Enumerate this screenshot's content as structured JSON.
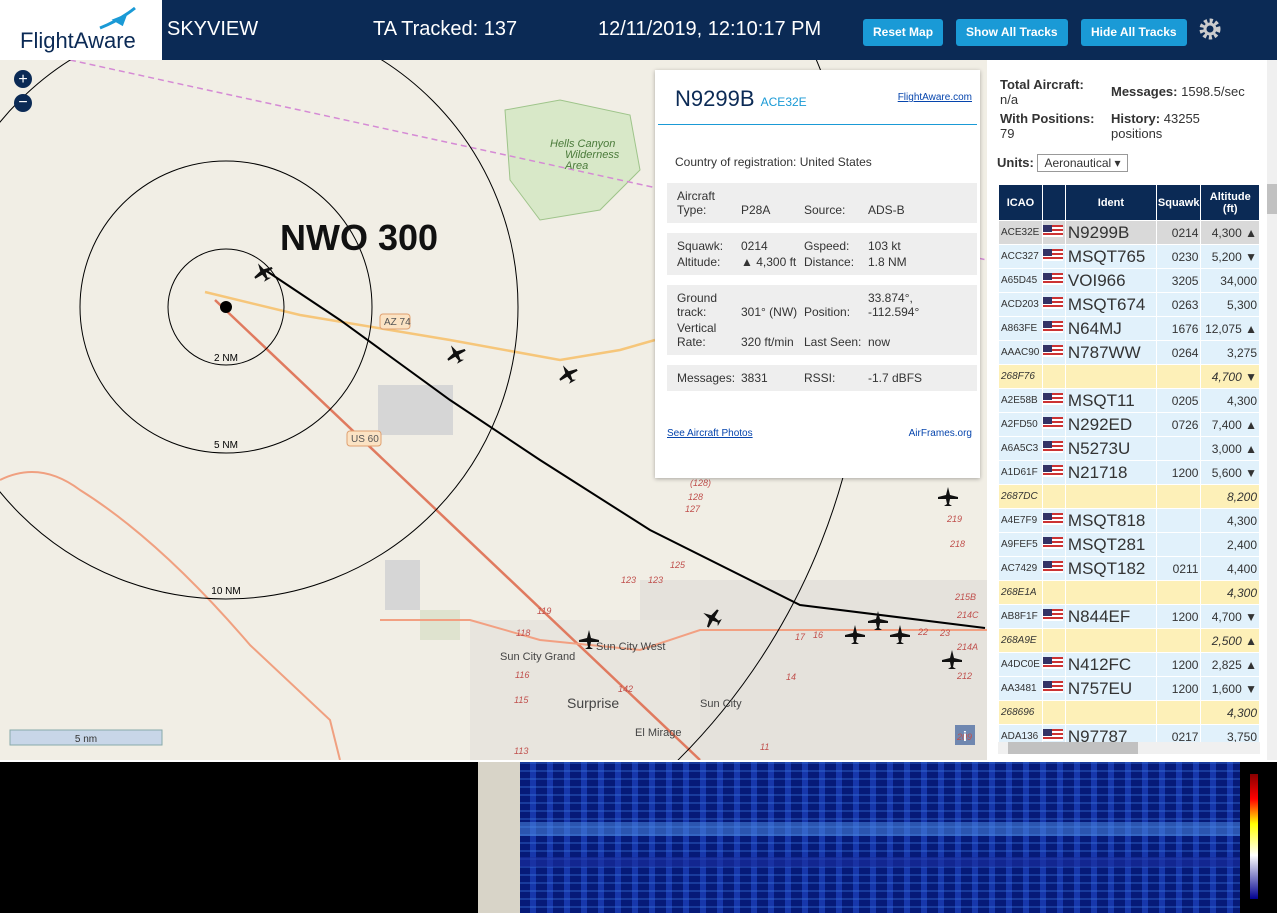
{
  "header": {
    "logo": "FlightAware",
    "title": "SKYVIEW",
    "tracked": "TA Tracked: 137",
    "datetime": "12/11/2019, 12:10:17 PM",
    "buttons": [
      "Reset Map",
      "Show All Tracks",
      "Hide All Tracks"
    ]
  },
  "map": {
    "annotation": "NWO 300",
    "range_labels": [
      "2 NM",
      "5 NM",
      "10 NM"
    ],
    "roads": [
      "AZ 74",
      "US 60"
    ],
    "places": [
      "Hells Canyon Wilderness Area",
      "Sun City Grand",
      "Sun City West",
      "Surprise",
      "Sun City",
      "El Mirage"
    ],
    "route_numbers": [
      "(128)",
      "128",
      "127",
      "125",
      "123",
      "123",
      "119",
      "118",
      "116",
      "115",
      "113",
      "142",
      "17",
      "16",
      "14",
      "11",
      "219",
      "218",
      "215B",
      "214C",
      "214A",
      "212",
      "209",
      "23",
      "22"
    ],
    "scale": "5 nm",
    "info": "i"
  },
  "popup": {
    "registration": "N9299B",
    "icao": "ACE32E",
    "link": "FlightAware.com",
    "country_label": "Country of registration:",
    "country": "United States",
    "groups": [
      [
        [
          "Aircraft Type:",
          "P28A"
        ],
        [
          "Source:",
          "ADS-B"
        ]
      ],
      [
        [
          "Squawk:",
          "0214"
        ],
        [
          "Gspeed:",
          "103 kt"
        ],
        [
          "Altitude:",
          "▲ 4,300 ft"
        ],
        [
          "Distance:",
          "1.8 NM"
        ]
      ],
      [
        [
          "Ground track:",
          "301° (NW)"
        ],
        [
          "Position:",
          "33.874°, -112.594°"
        ],
        [
          "Vertical Rate:",
          "320 ft/min"
        ],
        [
          "Last Seen:",
          "now"
        ]
      ],
      [
        [
          "Messages:",
          "3831"
        ],
        [
          "RSSI:",
          "-1.7 dBFS"
        ]
      ]
    ],
    "photos_link": "See Aircraft Photos",
    "airframes_link": "AirFrames.org"
  },
  "stats": {
    "total_label": "Total Aircraft:",
    "total": "n/a",
    "messages_label": "Messages:",
    "messages": "1598.5/sec",
    "positions_label": "With Positions:",
    "positions": "79",
    "history_label": "History:",
    "history": "43255 positions",
    "units_label": "Units:",
    "units": "Aeronautical"
  },
  "table": {
    "headers": [
      "ICAO",
      "Ident",
      "Squawk",
      "Altitude (ft)"
    ],
    "rows": [
      [
        "ACE32E",
        "N9299B",
        "0214",
        "4,300 ▲"
      ],
      [
        "ACC327",
        "MSQT765",
        "0230",
        "5,200 ▼"
      ],
      [
        "A65D45",
        "VOI966",
        "3205",
        "34,000"
      ],
      [
        "ACD203",
        "MSQT674",
        "0263",
        "5,300"
      ],
      [
        "A863FE",
        "N64MJ",
        "1676",
        "12,075 ▲"
      ],
      [
        "AAAC90",
        "N787WW",
        "0264",
        "3,275"
      ],
      [
        "268F76",
        null,
        null,
        "4,700 ▼"
      ],
      [
        "A2E58B",
        "MSQT11",
        "0205",
        "4,300"
      ],
      [
        "A2FD50",
        "N292ED",
        "0726",
        "7,400 ▲"
      ],
      [
        "A6A5C3",
        "N5273U",
        null,
        "3,000 ▲"
      ],
      [
        "A1D61F",
        "N21718",
        "1200",
        "5,600 ▼"
      ],
      [
        "2687DC",
        null,
        null,
        "8,200"
      ],
      [
        "A4E7F9",
        "MSQT818",
        null,
        "4,300"
      ],
      [
        "A9FEF5",
        "MSQT281",
        null,
        "2,400"
      ],
      [
        "AC7429",
        "MSQT182",
        "0211",
        "4,400"
      ],
      [
        "268E1A",
        null,
        null,
        "4,300"
      ],
      [
        "AB8F1F",
        "N844EF",
        "1200",
        "4,700 ▼"
      ],
      [
        "268A9E",
        null,
        null,
        "2,500 ▲"
      ],
      [
        "A4DC0E",
        "N412FC",
        "1200",
        "2,825 ▲"
      ],
      [
        "AA3481",
        "N757EU",
        "1200",
        "1,600 ▼"
      ],
      [
        "268696",
        null,
        null,
        "4,300"
      ],
      [
        "ADA136",
        "N97787",
        "0217",
        "3,750"
      ]
    ]
  }
}
